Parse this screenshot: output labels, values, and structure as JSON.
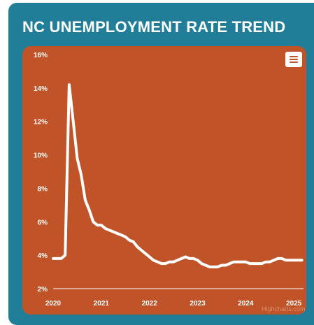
{
  "header": {
    "title": "NC UNEMPLOYMENT RATE TREND"
  },
  "toolbar": {
    "menu_icon": "hamburger-menu-icon"
  },
  "credits": "Highcharts.com",
  "colors": {
    "card_background": "#207e99",
    "plot_background": "#c05428",
    "line": "#ffffff",
    "text": "#ffffff"
  },
  "chart_data": {
    "type": "line",
    "title": "NC UNEMPLOYMENT RATE TREND",
    "xlabel": "",
    "ylabel": "",
    "xlim": [
      2020,
      2025.2
    ],
    "ylim": [
      2,
      16
    ],
    "x_ticks": [
      2020,
      2021,
      2022,
      2023,
      2024,
      2025
    ],
    "x_tick_labels": [
      "2020",
      "2021",
      "2022",
      "2023",
      "2024",
      "2025"
    ],
    "y_ticks": [
      2,
      4,
      6,
      8,
      10,
      12,
      14,
      16
    ],
    "y_tick_labels": [
      "2%",
      "4%",
      "6%",
      "8%",
      "10%",
      "12%",
      "14%",
      "16%"
    ],
    "grid": false,
    "legend": "none",
    "series": [
      {
        "x": [
          2020.0,
          2020.083,
          2020.167,
          2020.25,
          2020.333,
          2020.417,
          2020.5,
          2020.583,
          2020.667,
          2020.75,
          2020.833,
          2020.917,
          2021.0,
          2021.083,
          2021.167,
          2021.25,
          2021.333,
          2021.417,
          2021.5,
          2021.583,
          2021.667,
          2021.75,
          2021.833,
          2021.917,
          2022.0,
          2022.083,
          2022.167,
          2022.25,
          2022.333,
          2022.417,
          2022.5,
          2022.583,
          2022.667,
          2022.75,
          2022.833,
          2022.917,
          2023.0,
          2023.083,
          2023.167,
          2023.25,
          2023.333,
          2023.417,
          2023.5,
          2023.583,
          2023.667,
          2023.75,
          2023.833,
          2023.917,
          2024.0,
          2024.083,
          2024.167,
          2024.25,
          2024.333,
          2024.417,
          2024.5,
          2024.583,
          2024.667,
          2024.75,
          2024.833,
          2024.917,
          2025.0,
          2025.083,
          2025.167
        ],
        "y": [
          3.8,
          3.8,
          3.8,
          4.0,
          14.2,
          12.0,
          9.8,
          8.8,
          7.3,
          6.7,
          6.0,
          5.8,
          5.8,
          5.6,
          5.5,
          5.4,
          5.3,
          5.2,
          5.1,
          4.9,
          4.8,
          4.5,
          4.3,
          4.1,
          3.9,
          3.7,
          3.6,
          3.5,
          3.5,
          3.6,
          3.6,
          3.7,
          3.8,
          3.9,
          3.8,
          3.8,
          3.7,
          3.5,
          3.4,
          3.3,
          3.3,
          3.3,
          3.4,
          3.4,
          3.5,
          3.6,
          3.6,
          3.6,
          3.6,
          3.5,
          3.5,
          3.5,
          3.5,
          3.6,
          3.6,
          3.7,
          3.8,
          3.8,
          3.7,
          3.7,
          3.7,
          3.7,
          3.7
        ]
      }
    ]
  }
}
